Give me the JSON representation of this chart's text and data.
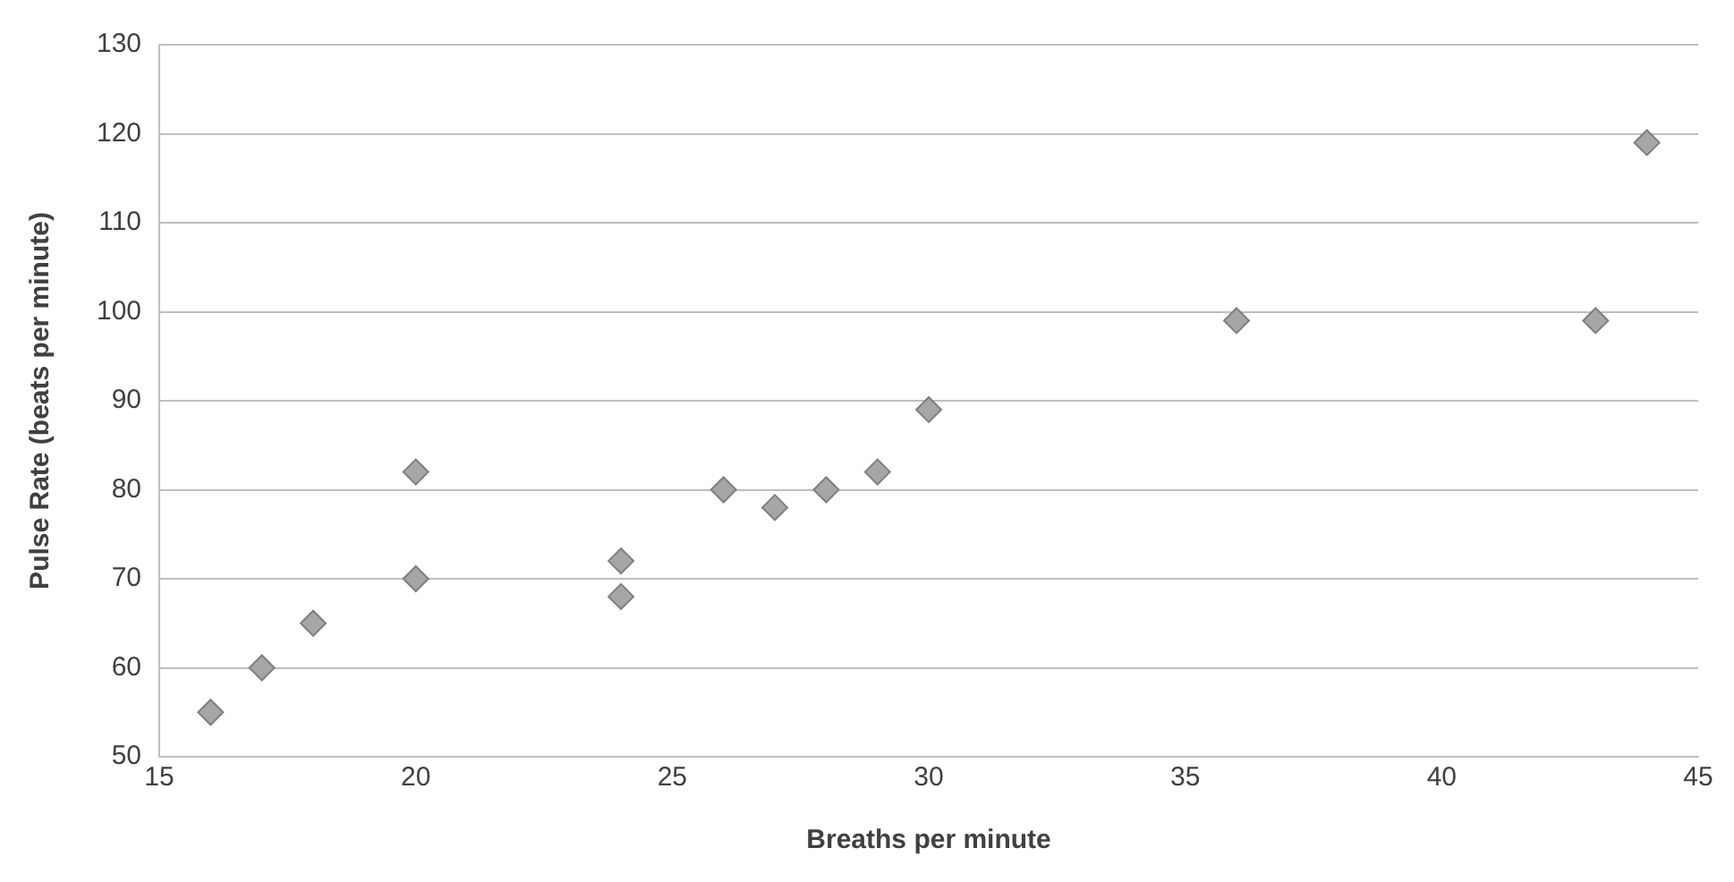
{
  "chart_data": {
    "type": "scatter",
    "xlabel": "Breaths per minute",
    "ylabel": "Pulse Rate (beats per minute)",
    "x": [
      16,
      17,
      18,
      20,
      20,
      24,
      24,
      26,
      27,
      28,
      29,
      30,
      36,
      43,
      44
    ],
    "series": [
      {
        "color": "#a6a6a6",
        "values": [
          55,
          60,
          65,
          82,
          70,
          72,
          68,
          80,
          78,
          80,
          82,
          89,
          99,
          99,
          119
        ]
      }
    ],
    "xlim": [
      15,
      45
    ],
    "xticks": [
      15,
      20,
      25,
      30,
      35,
      40,
      45
    ],
    "ylim": [
      50,
      130
    ],
    "yticks": [
      50,
      60,
      70,
      80,
      90,
      100,
      110,
      120,
      130
    ],
    "grid": "y",
    "legend": false,
    "marker": "diamond"
  }
}
